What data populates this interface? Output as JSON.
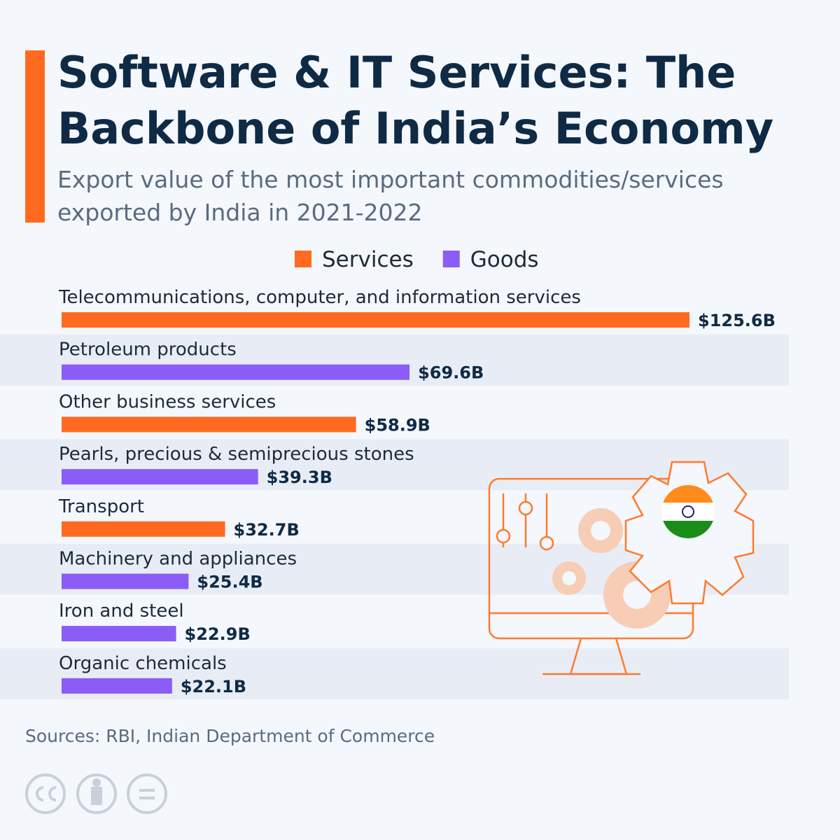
{
  "chart_data": {
    "type": "bar",
    "orientation": "horizontal",
    "title": [
      "Software & IT Services: The",
      "Backbone of India’s Economy"
    ],
    "subtitle": [
      "Export value of the most important commodities/services",
      "exported by India in 2021-2022"
    ],
    "categories": [
      "Telecommunications, computer, and information services",
      "Petroleum products",
      "Other business services",
      "Pearls, precious & semiprecious stones",
      "Transport",
      "Machinery and appliances",
      "Iron and steel",
      "Organic chemicals"
    ],
    "series": [
      {
        "name": "Services",
        "color": "#ff6a20",
        "values": [
          125.6,
          null,
          58.9,
          null,
          32.7,
          null,
          null,
          null
        ],
        "value_labels": [
          "$125.6B",
          null,
          "$58.9B",
          null,
          "$32.7B",
          null,
          null,
          null
        ]
      },
      {
        "name": "Goods",
        "color": "#8b5cf6",
        "values": [
          null,
          69.6,
          null,
          39.3,
          null,
          25.4,
          22.9,
          22.1
        ],
        "value_labels": [
          null,
          "$69.6B",
          null,
          "$39.3B",
          null,
          "$25.4B",
          "$22.9B",
          "$22.1B"
        ]
      }
    ],
    "source": "Sources: RBI, Indian Department of Commerce"
  }
}
